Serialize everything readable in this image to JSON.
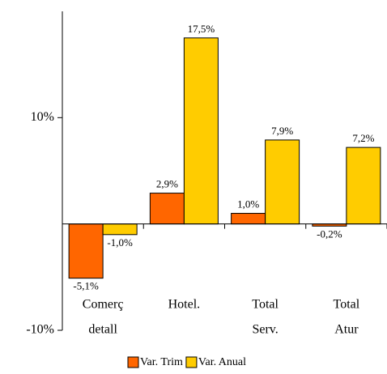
{
  "chart_data": {
    "type": "bar",
    "categories": [
      [
        "Comerç",
        "detall"
      ],
      [
        "Hotel."
      ],
      [
        "Total",
        "Serv."
      ],
      [
        "Total",
        "Atur"
      ]
    ],
    "series": [
      {
        "name": "Var. Trim",
        "color": "#ff6600",
        "values": [
          -5.1,
          2.9,
          1.0,
          -0.2
        ],
        "value_labels": [
          "-5,1%",
          "2,9%",
          "1,0%",
          "-0,2%"
        ]
      },
      {
        "name": "Var. Anual",
        "color": "#ffcc00",
        "values": [
          -1.0,
          17.5,
          7.9,
          7.2
        ],
        "value_labels": [
          "-1,0%",
          "17,5%",
          "7,9%",
          "7,2%"
        ]
      }
    ],
    "ylim": [
      -10,
      20
    ],
    "yticks": [
      {
        "value": -10,
        "label": "-10%"
      },
      {
        "value": 10,
        "label": "10%"
      }
    ],
    "legend": "bottom"
  }
}
